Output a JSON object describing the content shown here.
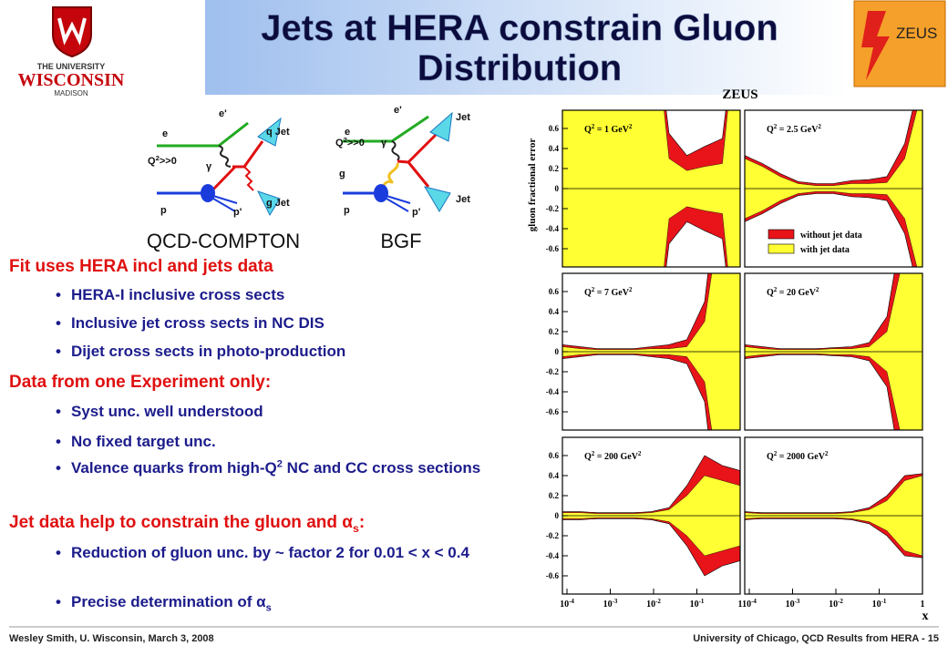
{
  "header": {
    "title_lines": [
      "Jets at HERA constrain Gluon",
      "Distribution"
    ],
    "logo_left": {
      "line1": "THE UNIVERSITY",
      "line2": "WISCONSIN",
      "line3": "MADISON"
    },
    "logo_right": "ZEUS"
  },
  "diagrams": [
    {
      "caption": "QCD-COMPTON",
      "labels": [
        "e",
        "e'",
        "q Jet",
        "g Jet",
        [
          "Q",
          {
            "sup": "2"
          },
          ">>0"
        ],
        "γ",
        "p",
        "p'"
      ]
    },
    {
      "caption": "BGF",
      "labels": [
        "e",
        "e'",
        "Jet",
        "Jet",
        [
          "Q",
          {
            "sup": "2"
          },
          ">>0"
        ],
        "γ",
        "g",
        "p",
        "p'"
      ]
    }
  ],
  "sections": [
    {
      "heading": [
        "Fit uses HERA incl and jets data"
      ],
      "items": [
        [
          "HERA-I inclusive cross sects"
        ],
        [
          "Inclusive jet cross sects in NC DIS"
        ],
        [
          "Dijet cross sects in photo-production"
        ]
      ]
    },
    {
      "heading": [
        "Data from one Experiment only:"
      ],
      "items": [
        [
          "Syst unc. well understood"
        ],
        [
          "No fixed target unc."
        ],
        [
          "Valence quarks from high-Q",
          {
            "sup": "2"
          },
          " NC and CC cross sections"
        ]
      ]
    },
    {
      "heading": [
        "Jet data help to constrain the gluon and ",
        "α",
        {
          "sub": "s"
        },
        ":"
      ],
      "items": [
        [
          "Reduction of gluon unc. by  ~ factor 2 for 0.01 < x < 0.4"
        ],
        [
          "Precise determination of ",
          "α",
          {
            "sub": "s"
          }
        ]
      ]
    }
  ],
  "figure": {
    "title": "ZEUS",
    "y_label": "gluon fractional error",
    "x_label": "x",
    "yticks": [
      "0.6",
      "0.4",
      "0.2",
      "0",
      "-0.2",
      "-0.4",
      "-0.6"
    ],
    "xticks": [
      [
        "10",
        {
          "sup": "-4"
        }
      ],
      [
        "10",
        {
          "sup": "-3"
        }
      ],
      [
        "10",
        {
          "sup": "-2"
        }
      ],
      [
        "10",
        {
          "sup": "-1"
        }
      ],
      [
        "1"
      ]
    ],
    "panels": [
      [
        "Q",
        {
          "sup": "2"
        },
        " = 1 GeV",
        {
          "sup": "2"
        }
      ],
      [
        "Q",
        {
          "sup": "2"
        },
        " = 2.5 GeV",
        {
          "sup": "2"
        }
      ],
      [
        "Q",
        {
          "sup": "2"
        },
        " = 7 GeV",
        {
          "sup": "2"
        }
      ],
      [
        "Q",
        {
          "sup": "2"
        },
        " = 20 GeV",
        {
          "sup": "2"
        }
      ],
      [
        "Q",
        {
          "sup": "2"
        },
        " = 200 GeV",
        {
          "sup": "2"
        }
      ],
      [
        "Q",
        {
          "sup": "2"
        },
        " = 2000 GeV",
        {
          "sup": "2"
        }
      ]
    ],
    "legend": [
      {
        "name": "without jet data",
        "color": "#e8141a"
      },
      {
        "name": "with jet data",
        "color": "#ffff33"
      }
    ]
  },
  "footer": {
    "left": "Wesley Smith, U. Wisconsin, March 3, 2008",
    "right": "University of Chicago, QCD Results from HERA - ",
    "page": "15"
  }
}
